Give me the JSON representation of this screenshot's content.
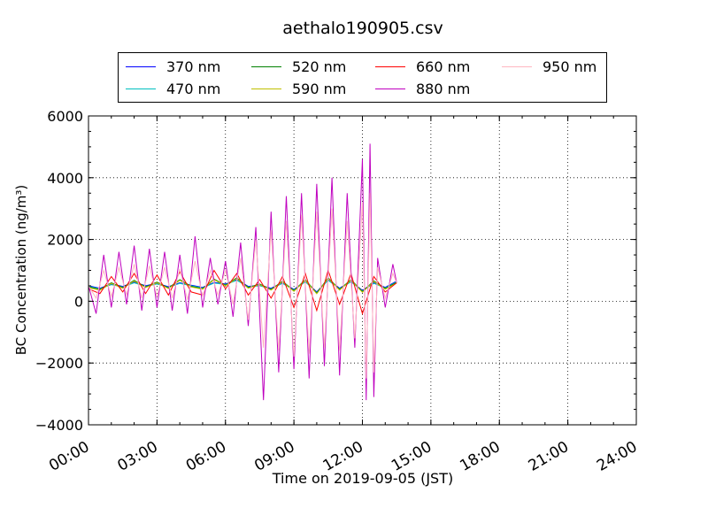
{
  "chart_data": {
    "type": "line",
    "title": "aethalo190905.csv",
    "xlabel": "Time on 2019-09-05 (JST)",
    "ylabel": "BC Concentration (ng/m³)",
    "ylim": [
      -4000,
      6000
    ],
    "xlim_hours": [
      0,
      24
    ],
    "x_tick_labels": [
      "00:00",
      "03:00",
      "06:00",
      "09:00",
      "12:00",
      "15:00",
      "18:00",
      "21:00",
      "24:00"
    ],
    "y_tick_labels": [
      "−4000",
      "−2000",
      "0",
      "2000",
      "4000",
      "6000"
    ],
    "grid": true,
    "legend_position": "top",
    "series": [
      {
        "name": "370 nm",
        "color": "#0000ff",
        "x": [
          "00:00",
          "00:30",
          "01:00",
          "01:30",
          "02:00",
          "02:30",
          "03:00",
          "03:30",
          "04:00",
          "04:30",
          "05:00",
          "05:30",
          "06:00",
          "06:30",
          "07:00",
          "07:30",
          "08:00",
          "08:30",
          "09:00",
          "09:30",
          "10:00",
          "10:30",
          "11:00",
          "11:30",
          "12:00",
          "12:30",
          "13:00",
          "13:30"
        ],
        "y": [
          500,
          420,
          560,
          480,
          620,
          500,
          580,
          470,
          600,
          520,
          450,
          610,
          560,
          700,
          480,
          520,
          420,
          600,
          380,
          650,
          300,
          700,
          420,
          650,
          350,
          600,
          450,
          650
        ]
      },
      {
        "name": "470 nm",
        "color": "#00bfbf",
        "x": [
          "00:00",
          "00:30",
          "01:00",
          "01:30",
          "02:00",
          "02:30",
          "03:00",
          "03:30",
          "04:00",
          "04:30",
          "05:00",
          "05:30",
          "06:00",
          "06:30",
          "07:00",
          "07:30",
          "08:00",
          "08:30",
          "09:00",
          "09:30",
          "10:00",
          "10:30",
          "11:00",
          "11:30",
          "12:00",
          "12:30",
          "13:00",
          "13:30"
        ],
        "y": [
          480,
          400,
          540,
          460,
          600,
          480,
          560,
          450,
          580,
          500,
          430,
          590,
          540,
          680,
          460,
          500,
          400,
          580,
          360,
          630,
          280,
          680,
          400,
          630,
          330,
          580,
          430,
          630
        ]
      },
      {
        "name": "520 nm",
        "color": "#008000",
        "x": [
          "00:00",
          "00:30",
          "01:00",
          "01:30",
          "02:00",
          "02:30",
          "03:00",
          "03:30",
          "04:00",
          "04:30",
          "05:00",
          "05:30",
          "06:00",
          "06:30",
          "07:00",
          "07:30",
          "08:00",
          "08:30",
          "09:00",
          "09:30",
          "10:00",
          "10:30",
          "11:00",
          "11:30",
          "12:00",
          "12:30",
          "13:00",
          "13:30"
        ],
        "y": [
          460,
          380,
          600,
          440,
          680,
          460,
          620,
          430,
          700,
          480,
          410,
          720,
          520,
          760,
          440,
          560,
          380,
          650,
          340,
          700,
          260,
          760,
          380,
          700,
          310,
          660,
          410,
          610
        ]
      },
      {
        "name": "590 nm",
        "color": "#bfbf00",
        "x": [
          "00:00",
          "00:30",
          "01:00",
          "01:30",
          "02:00",
          "02:30",
          "03:00",
          "03:30",
          "04:00",
          "04:30",
          "05:00",
          "05:30",
          "06:00",
          "06:30",
          "07:00",
          "07:30",
          "08:00",
          "08:30",
          "09:00",
          "09:30",
          "10:00",
          "10:30",
          "11:00",
          "11:30",
          "12:00",
          "12:30",
          "13:00",
          "13:30"
        ],
        "y": [
          440,
          360,
          580,
          420,
          660,
          440,
          600,
          410,
          680,
          460,
          390,
          700,
          500,
          740,
          420,
          540,
          360,
          630,
          320,
          680,
          240,
          740,
          360,
          680,
          290,
          640,
          390,
          590
        ]
      },
      {
        "name": "660 nm",
        "color": "#ff0000",
        "x": [
          "00:00",
          "00:30",
          "01:00",
          "01:30",
          "02:00",
          "02:30",
          "03:00",
          "03:30",
          "04:00",
          "04:30",
          "05:00",
          "05:30",
          "06:00",
          "06:30",
          "07:00",
          "07:30",
          "08:00",
          "08:30",
          "09:00",
          "09:30",
          "10:00",
          "10:30",
          "11:00",
          "11:30",
          "12:00",
          "12:30",
          "13:00",
          "13:30"
        ],
        "y": [
          400,
          250,
          800,
          300,
          900,
          250,
          850,
          200,
          950,
          300,
          200,
          1000,
          400,
          900,
          200,
          700,
          100,
          800,
          -200,
          900,
          -300,
          1000,
          -100,
          900,
          -400,
          800,
          300,
          600
        ]
      },
      {
        "name": "880 nm",
        "color": "#bf00bf",
        "x": [
          "00:00",
          "00:20",
          "00:40",
          "01:00",
          "01:20",
          "01:40",
          "02:00",
          "02:20",
          "02:40",
          "03:00",
          "03:20",
          "03:40",
          "04:00",
          "04:20",
          "04:40",
          "05:00",
          "05:20",
          "05:40",
          "06:00",
          "06:20",
          "06:40",
          "07:00",
          "07:20",
          "07:40",
          "08:00",
          "08:20",
          "08:40",
          "09:00",
          "09:20",
          "09:40",
          "10:00",
          "10:20",
          "10:40",
          "11:00",
          "11:20",
          "11:40",
          "12:00",
          "12:10",
          "12:20",
          "12:30",
          "12:40",
          "13:00",
          "13:20",
          "13:30"
        ],
        "y": [
          500,
          -400,
          1500,
          -200,
          1600,
          -100,
          1800,
          -300,
          1700,
          -200,
          1600,
          -300,
          1500,
          -400,
          2100,
          -200,
          1400,
          -100,
          1300,
          -500,
          1900,
          -800,
          2400,
          -3200,
          2900,
          -2300,
          3400,
          -2200,
          3500,
          -2500,
          3800,
          -2100,
          4000,
          -2400,
          3500,
          -1500,
          4600,
          -3200,
          5100,
          -3100,
          1400,
          -200,
          1200,
          600
        ]
      },
      {
        "name": "950 nm",
        "color": "#ffb6c1",
        "x": [
          "00:00",
          "00:20",
          "00:40",
          "01:00",
          "01:20",
          "01:40",
          "02:00",
          "02:20",
          "02:40",
          "03:00",
          "03:20",
          "03:40",
          "04:00",
          "04:20",
          "04:40",
          "05:00",
          "05:20",
          "05:40",
          "06:00",
          "06:20",
          "06:40",
          "07:00",
          "07:20",
          "07:40",
          "08:00",
          "08:20",
          "08:40",
          "09:00",
          "09:20",
          "09:40",
          "10:00",
          "10:20",
          "10:40",
          "11:00",
          "11:20",
          "11:40",
          "12:00",
          "12:10",
          "12:20",
          "12:30",
          "12:40",
          "13:00",
          "13:20",
          "13:30"
        ],
        "y": [
          500,
          100,
          1000,
          150,
          1100,
          200,
          1200,
          100,
          1150,
          150,
          1100,
          100,
          1050,
          50,
          1300,
          150,
          1000,
          200,
          1000,
          -100,
          1400,
          -600,
          2000,
          -1500,
          2300,
          -1600,
          2600,
          -1800,
          2800,
          -1700,
          2900,
          -1500,
          3000,
          -1600,
          2600,
          -1200,
          3200,
          -2500,
          3500,
          -2300,
          1100,
          100,
          900,
          600
        ]
      }
    ]
  }
}
